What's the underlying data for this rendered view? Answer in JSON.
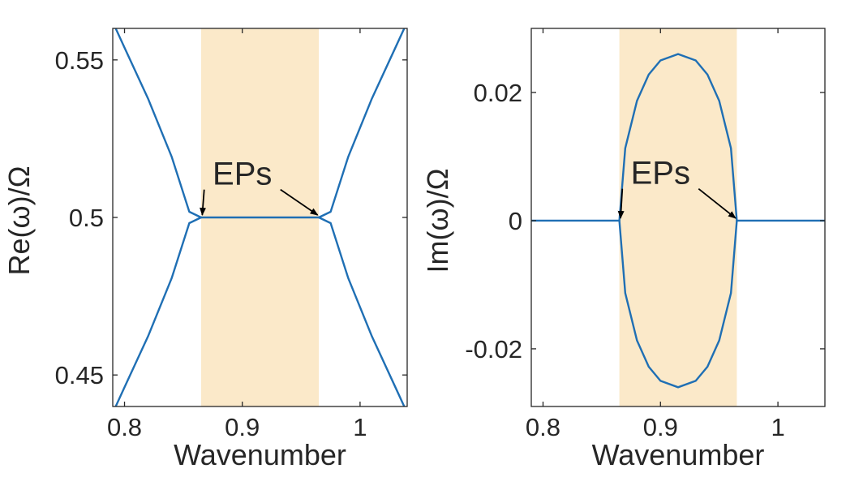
{
  "chart_data": [
    {
      "type": "line",
      "xlabel": "Wavenumber",
      "ylabel": "Re(ω)/Ω",
      "xlim": [
        0.79,
        1.04
      ],
      "ylim": [
        0.44,
        0.56
      ],
      "xticks": [
        0.8,
        0.9,
        1.0
      ],
      "xtick_labels": [
        "0.8",
        "0.9",
        "1"
      ],
      "yticks": [
        0.45,
        0.5,
        0.55
      ],
      "ytick_labels": [
        "0.45",
        "0.5",
        "0.55"
      ],
      "grid": false,
      "shaded_region": {
        "x": [
          0.865,
          0.965
        ]
      },
      "series": [
        {
          "x": [
            0.7925,
            0.8,
            0.82,
            0.84,
            0.855,
            0.865
          ],
          "y": [
            0.56,
            0.5539,
            0.5377,
            0.5193,
            0.5018,
            0.5
          ]
        },
        {
          "x": [
            0.7925,
            0.8,
            0.82,
            0.84,
            0.855,
            0.865
          ],
          "y": [
            0.44,
            0.4461,
            0.4623,
            0.4807,
            0.4982,
            0.5
          ]
        },
        {
          "x": [
            0.865,
            0.965
          ],
          "y": [
            0.5,
            0.5
          ]
        },
        {
          "x": [
            0.965,
            0.975,
            0.99,
            1.01,
            1.03,
            1.0375
          ],
          "y": [
            0.5,
            0.5018,
            0.5193,
            0.5377,
            0.5539,
            0.56
          ]
        },
        {
          "x": [
            0.965,
            0.975,
            0.99,
            1.01,
            1.03,
            1.0375
          ],
          "y": [
            0.5,
            0.4982,
            0.4807,
            0.4623,
            0.4461,
            0.44
          ]
        }
      ],
      "annotations": [
        {
          "text": "EPs",
          "x": 0.9,
          "y": 0.514,
          "arrows_to": [
            [
              0.866,
              0.5
            ],
            [
              0.964,
              0.5
            ]
          ]
        }
      ]
    },
    {
      "type": "line",
      "xlabel": "Wavenumber",
      "ylabel": "Im(ω)/Ω",
      "xlim": [
        0.79,
        1.04
      ],
      "ylim": [
        -0.029,
        0.03
      ],
      "xticks": [
        0.8,
        0.9,
        1.0
      ],
      "xtick_labels": [
        "0.8",
        "0.9",
        "1"
      ],
      "yticks": [
        -0.02,
        0,
        0.02
      ],
      "ytick_labels": [
        "-0.02",
        "0",
        "0.02"
      ],
      "grid": false,
      "shaded_region": {
        "x": [
          0.865,
          0.965
        ]
      },
      "series": [
        {
          "x": [
            0.79,
            0.865
          ],
          "y": [
            0,
            0
          ]
        },
        {
          "x": [
            0.965,
            1.04
          ],
          "y": [
            0,
            0
          ]
        },
        {
          "x": [
            0.865,
            0.87,
            0.88,
            0.89,
            0.9,
            0.915,
            0.93,
            0.94,
            0.95,
            0.96,
            0.965
          ],
          "y": [
            0,
            0.0113,
            0.0187,
            0.0228,
            0.025,
            0.026,
            0.025,
            0.0228,
            0.0187,
            0.0113,
            0
          ]
        },
        {
          "x": [
            0.865,
            0.87,
            0.88,
            0.89,
            0.9,
            0.915,
            0.93,
            0.94,
            0.95,
            0.96,
            0.965
          ],
          "y": [
            0,
            -0.0113,
            -0.0187,
            -0.0228,
            -0.025,
            -0.026,
            -0.025,
            -0.0228,
            -0.0187,
            -0.0113,
            0
          ]
        }
      ],
      "annotations": [
        {
          "text": "EPs",
          "x": 0.9,
          "y": 0.0075,
          "arrows_to": [
            [
              0.866,
              0.0
            ],
            [
              0.964,
              0.0
            ]
          ]
        }
      ]
    }
  ],
  "colors": {
    "line": "#1f6fb4",
    "shade": "#fbe9c9",
    "axis": "#262626",
    "arrow": "#000000"
  }
}
